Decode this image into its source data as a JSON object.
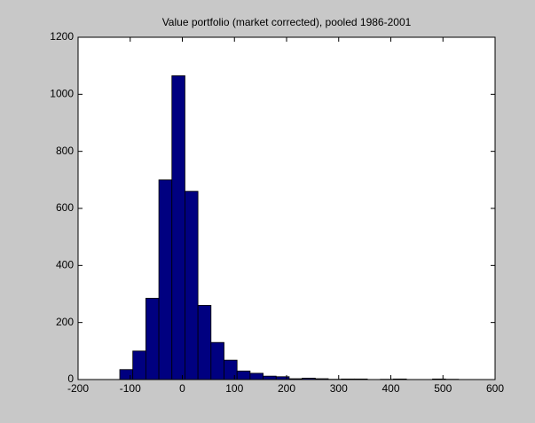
{
  "chart_data": {
    "type": "histogram",
    "title": "Value portfolio (market corrected), pooled 1986-2001",
    "bins": [
      -120,
      -95,
      -70,
      -45,
      -20,
      5,
      30,
      55,
      80,
      105,
      130,
      155,
      180,
      205,
      230,
      255,
      280,
      305,
      330,
      355,
      380,
      405,
      430,
      455,
      480,
      505,
      530
    ],
    "values": [
      35,
      100,
      285,
      700,
      1065,
      660,
      260,
      130,
      68,
      30,
      22,
      12,
      10,
      3,
      5,
      3,
      1,
      2,
      2,
      0,
      1,
      2,
      0,
      0,
      2,
      1
    ],
    "color": "#000080",
    "xlim": [
      -200,
      600
    ],
    "xticks": [
      -200,
      -100,
      0,
      100,
      200,
      300,
      400,
      500,
      600
    ],
    "ylim": [
      0,
      1200
    ],
    "yticks": [
      0,
      200,
      400,
      600,
      800,
      1000,
      1200
    ]
  }
}
